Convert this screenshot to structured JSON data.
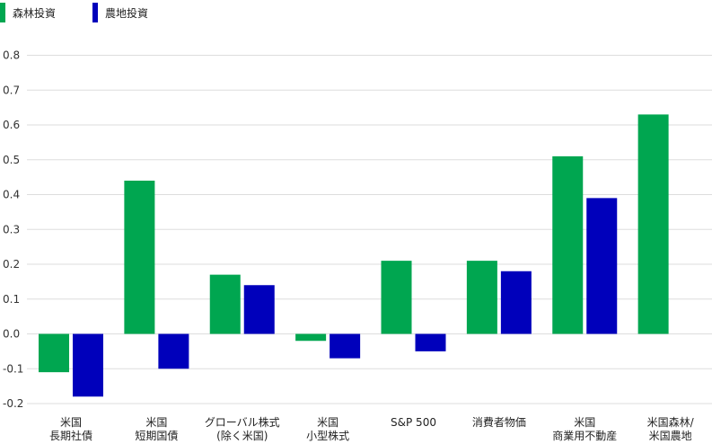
{
  "legend": {
    "forest": "森林投資",
    "farm": "農地投資"
  },
  "chart_data": {
    "type": "bar",
    "categories": [
      [
        "米国",
        "長期社債"
      ],
      [
        "米国",
        "短期国債"
      ],
      [
        "グローバル株式",
        "(除く米国)"
      ],
      [
        "米国",
        "小型株式"
      ],
      [
        "S&P 500"
      ],
      [
        "消費者物価"
      ],
      [
        "米国",
        "商業用不動産"
      ],
      [
        "米国森林/",
        "米国農地"
      ]
    ],
    "series": [
      {
        "name": "森林投資",
        "color": "#00a650",
        "values": [
          -0.11,
          0.44,
          0.17,
          -0.02,
          0.21,
          0.21,
          0.51,
          0.63
        ]
      },
      {
        "name": "農地投資",
        "color": "#0000bb",
        "values": [
          -0.18,
          -0.1,
          0.14,
          -0.07,
          -0.05,
          0.18,
          0.39,
          null
        ]
      }
    ],
    "yticks": [
      "0.8",
      "0.7",
      "0.6",
      "0.5",
      "0.4",
      "0.3",
      "0.2",
      "0.1",
      "0.0",
      "-0.1",
      "-0.2"
    ],
    "ylim": [
      -0.2,
      0.8
    ],
    "grid": true,
    "legend_position": "top-left"
  }
}
